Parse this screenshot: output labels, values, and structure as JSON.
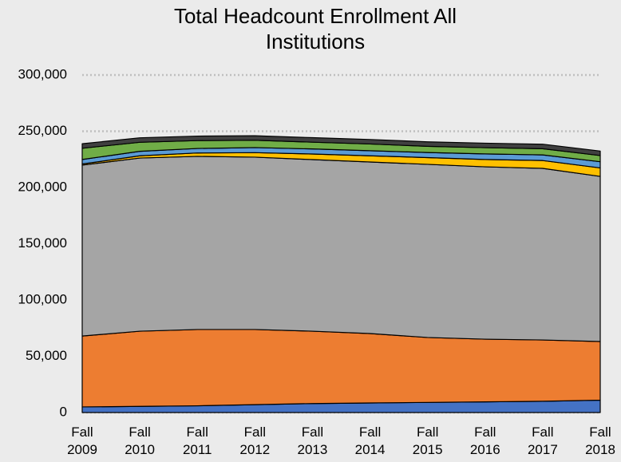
{
  "chart_data": {
    "type": "stacked-area",
    "title": "Total Headcount Enrollment All Institutions",
    "categories": [
      "Fall 2009",
      "Fall 2010",
      "Fall 2011",
      "Fall 2012",
      "Fall 2013",
      "Fall 2014",
      "Fall 2015",
      "Fall 2016",
      "Fall 2017",
      "Fall 2018"
    ],
    "series": [
      {
        "color": "#4472c4",
        "values": [
          5000,
          5500,
          6000,
          7000,
          8000,
          8500,
          9000,
          9500,
          10000,
          11000
        ]
      },
      {
        "color": "#ed7d31",
        "values": [
          63000,
          66800,
          67800,
          66800,
          64300,
          61700,
          57700,
          55700,
          54500,
          52100
        ]
      },
      {
        "color": "#a5a5a5",
        "values": [
          151900,
          153900,
          153900,
          153200,
          152500,
          152500,
          153900,
          153200,
          152500,
          146800
        ]
      },
      {
        "color": "#ffc000",
        "values": [
          1000,
          2000,
          3000,
          4000,
          5000,
          5500,
          6000,
          6500,
          7000,
          7500
        ]
      },
      {
        "color": "#5b9bd5",
        "values": [
          4000,
          4000,
          4000,
          4500,
          4500,
          4500,
          4500,
          5000,
          5000,
          5500
        ]
      },
      {
        "color": "#70ad47",
        "values": [
          10000,
          8000,
          7000,
          6500,
          6000,
          6000,
          5500,
          5500,
          5500,
          5500
        ]
      },
      {
        "color": "#404040",
        "values": [
          4000,
          4000,
          4000,
          4000,
          4000,
          4000,
          4000,
          4000,
          4000,
          4000
        ]
      }
    ],
    "ylim": [
      0,
      300000
    ],
    "yticks": [
      0,
      {
        "value": 50000,
        "label": "50,000"
      },
      {
        "value": 100000,
        "label": "100,000"
      },
      {
        "value": 150000,
        "label": "150,000"
      },
      {
        "value": 200000,
        "label": "200,000"
      },
      {
        "value": 250000,
        "label": "250,000"
      },
      {
        "value": 300000,
        "label": "300,000"
      }
    ],
    "grid": true
  }
}
